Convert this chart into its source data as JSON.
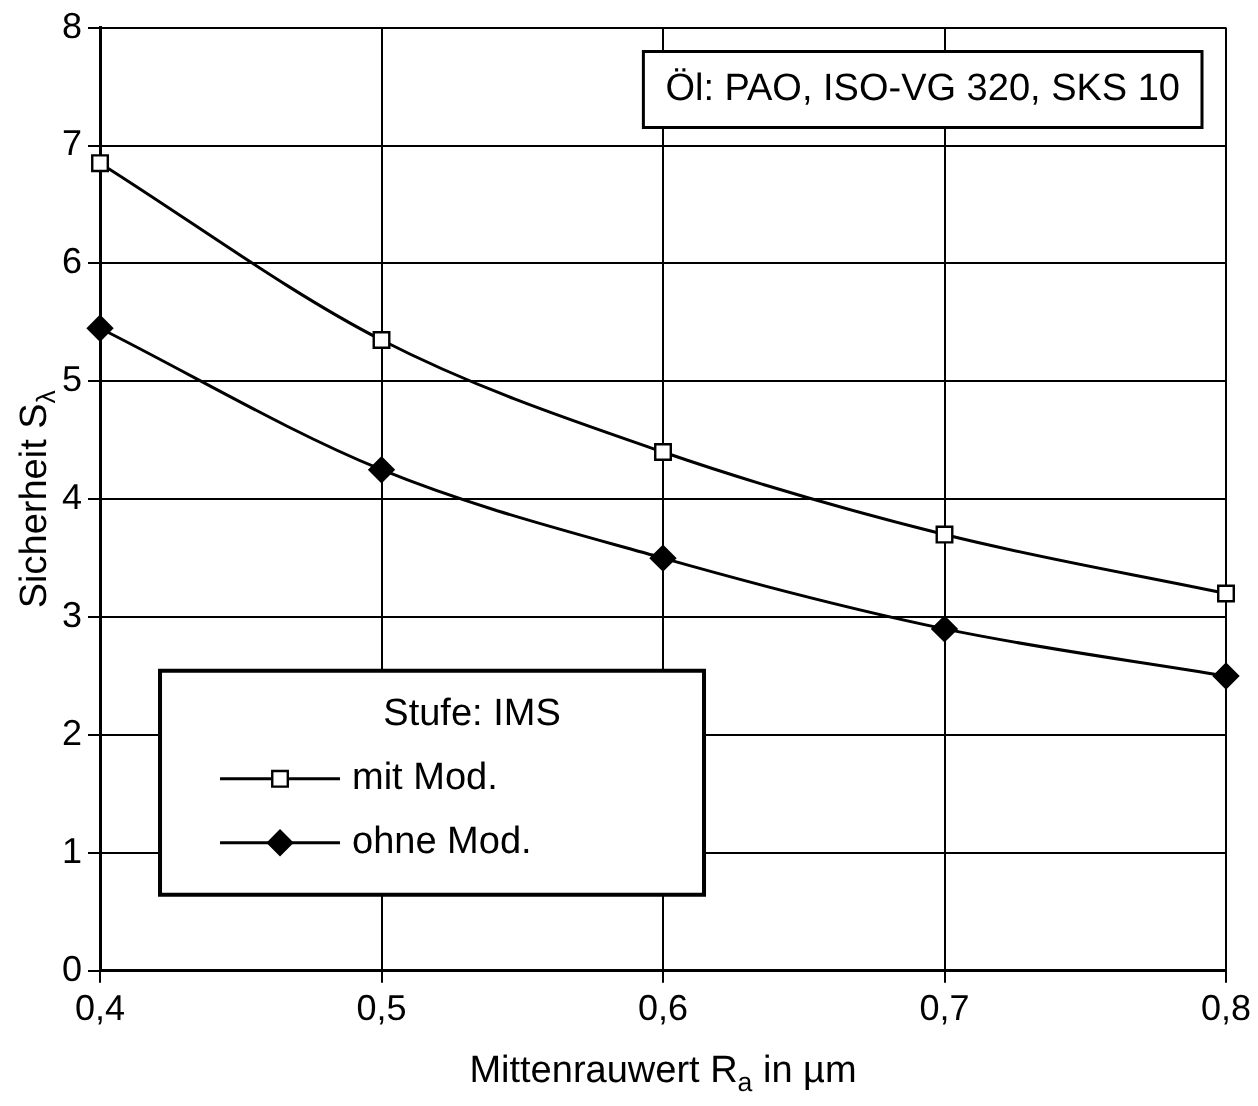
{
  "chart_data": {
    "type": "line",
    "xlabel": "Mittenrauwert R$_{a}$ in µm",
    "ylabel": "Sicherheit S$_{λ}$",
    "x": [
      0.4,
      0.5,
      0.6,
      0.7,
      0.8
    ],
    "series": [
      {
        "name": "mit Mod.",
        "color": "#000000",
        "marker": "square",
        "values": [
          6.85,
          5.35,
          4.4,
          3.7,
          3.2
        ]
      },
      {
        "name": "ohne Mod.",
        "color": "#000000",
        "marker": "diamond",
        "values": [
          5.45,
          4.25,
          3.5,
          2.9,
          2.5
        ]
      }
    ],
    "xlim": [
      0.4,
      0.8
    ],
    "xticks": [
      {
        "value": 0.4,
        "label": "0,4"
      },
      {
        "value": 0.5,
        "label": "0,5"
      },
      {
        "value": 0.6,
        "label": "0,6"
      },
      {
        "value": 0.7,
        "label": "0,7"
      },
      {
        "value": 0.8,
        "label": "0,8"
      }
    ],
    "ylim": [
      0,
      8
    ],
    "yticks": [
      0,
      1,
      2,
      3,
      4,
      5,
      6,
      7,
      8
    ],
    "grid": true,
    "legend": "bottom left",
    "legend_title": "Stufe: IMS",
    "line_style": "solid",
    "annotations": [
      "Öl: PAO, ISO-VG 320, SKS 10"
    ]
  }
}
